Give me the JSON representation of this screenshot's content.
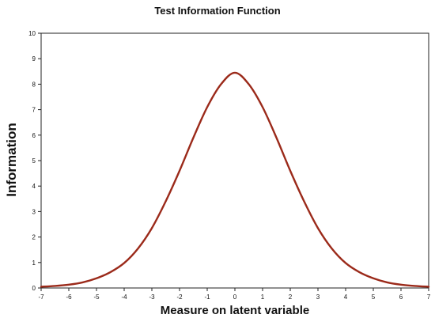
{
  "chart_data": {
    "type": "line",
    "title": "Test Information Function",
    "xlabel": "Measure on latent variable",
    "ylabel": "Information",
    "xlim": [
      -7,
      7
    ],
    "ylim": [
      0,
      10
    ],
    "x_ticks": [
      -7,
      -6,
      -5,
      -4,
      -3,
      -2,
      -1,
      0,
      1,
      2,
      3,
      4,
      5,
      6,
      7
    ],
    "y_ticks": [
      0,
      1,
      2,
      3,
      4,
      5,
      6,
      7,
      8,
      9,
      10
    ],
    "grid": false,
    "legend": "none",
    "line_color": "#9b2a1a",
    "series": [
      {
        "x": [
          -7,
          -6.5,
          -6,
          -5.5,
          -5,
          -4.5,
          -4,
          -3.5,
          -3,
          -2.5,
          -2,
          -1.5,
          -1,
          -0.5,
          0,
          0.5,
          1,
          1.5,
          2,
          2.5,
          3,
          3.5,
          4,
          4.5,
          5,
          5.5,
          6,
          6.5,
          7
        ],
        "y": [
          0.05,
          0.08,
          0.13,
          0.22,
          0.38,
          0.62,
          0.98,
          1.55,
          2.35,
          3.4,
          4.6,
          5.9,
          7.1,
          8.0,
          8.45,
          8.0,
          7.1,
          5.9,
          4.6,
          3.4,
          2.35,
          1.55,
          0.98,
          0.62,
          0.38,
          0.22,
          0.13,
          0.08,
          0.05
        ]
      }
    ]
  }
}
